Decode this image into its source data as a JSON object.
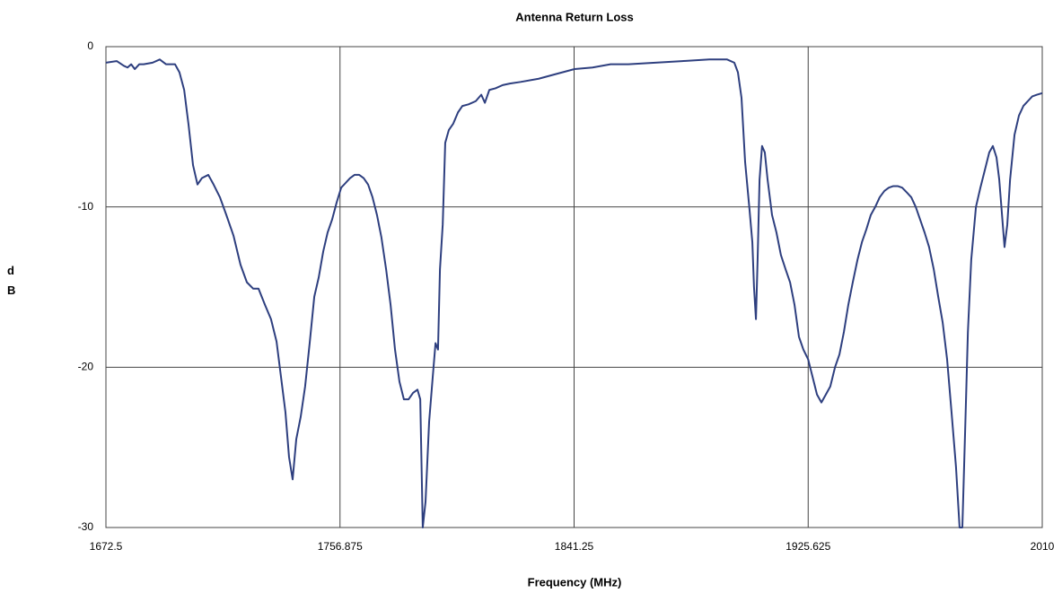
{
  "chart_data": {
    "type": "line",
    "title": "Antenna Return Loss",
    "x_label": "Frequency (MHz)",
    "y_label": "dB",
    "color": "#2e3f7f",
    "grid": true,
    "xlim": [
      1672.5,
      2010
    ],
    "xticks": [
      1672.5,
      1756.875,
      1841.25,
      1925.625,
      2010
    ],
    "ylim": [
      -30,
      0
    ],
    "yticks": [
      0,
      -10,
      -20,
      -30
    ],
    "x": [
      1672.5,
      1676.4,
      1679.0,
      1680.3,
      1681.6,
      1682.9,
      1684.5,
      1686.1,
      1689.3,
      1691.9,
      1694.2,
      1697.4,
      1699.0,
      1700.7,
      1702.3,
      1703.9,
      1705.5,
      1707.1,
      1709.4,
      1711.3,
      1713.6,
      1715.9,
      1718.5,
      1721.0,
      1723.3,
      1725.6,
      1727.5,
      1729.8,
      1732.0,
      1734.0,
      1735.6,
      1737.2,
      1738.5,
      1739.8,
      1741.1,
      1742.7,
      1744.3,
      1746.0,
      1747.6,
      1749.2,
      1750.8,
      1752.4,
      1754.0,
      1755.7,
      1757.3,
      1758.9,
      1760.5,
      1762.1,
      1763.8,
      1765.4,
      1767.0,
      1768.6,
      1770.2,
      1771.8,
      1773.5,
      1775.1,
      1776.7,
      1778.3,
      1779.9,
      1781.6,
      1783.2,
      1784.8,
      1785.8,
      1786.7,
      1787.7,
      1789.0,
      1790.3,
      1791.3,
      1792.2,
      1792.9,
      1793.9,
      1794.8,
      1796.1,
      1797.7,
      1799.4,
      1801.0,
      1803.2,
      1805.8,
      1807.8,
      1809.1,
      1810.7,
      1812.9,
      1815.5,
      1818.1,
      1822.0,
      1828.5,
      1834.9,
      1841.4,
      1847.9,
      1854.4,
      1860.8,
      1870.5,
      1880.2,
      1890.0,
      1896.4,
      1899.0,
      1900.3,
      1901.6,
      1902.9,
      1904.5,
      1905.5,
      1906.1,
      1906.8,
      1907.4,
      1908.1,
      1909.0,
      1910.0,
      1911.0,
      1912.6,
      1914.2,
      1915.8,
      1917.5,
      1919.1,
      1920.7,
      1922.3,
      1923.9,
      1925.6,
      1927.2,
      1928.8,
      1930.4,
      1932.0,
      1933.6,
      1935.3,
      1936.9,
      1938.5,
      1940.1,
      1941.7,
      1943.4,
      1945.0,
      1946.6,
      1948.2,
      1949.8,
      1951.4,
      1953.1,
      1954.7,
      1956.3,
      1957.9,
      1959.5,
      1961.2,
      1962.8,
      1964.4,
      1966.0,
      1967.6,
      1969.2,
      1970.9,
      1972.5,
      1974.1,
      1975.7,
      1977.3,
      1978.9,
      1980.2,
      1981.2,
      1982.2,
      1983.2,
      1984.4,
      1986.1,
      1987.7,
      1989.3,
      1990.9,
      1992.2,
      1993.5,
      1994.5,
      1995.5,
      1996.4,
      1997.4,
      1998.4,
      2000.0,
      2001.6,
      2003.2,
      2004.8,
      2006.4,
      2008.1,
      2010.0
    ],
    "values": [
      -1.0,
      -0.9,
      -1.2,
      -1.3,
      -1.1,
      -1.4,
      -1.1,
      -1.1,
      -1.0,
      -0.8,
      -1.1,
      -1.1,
      -1.6,
      -2.7,
      -4.9,
      -7.4,
      -8.6,
      -8.2,
      -8.0,
      -8.6,
      -9.4,
      -10.5,
      -11.8,
      -13.6,
      -14.7,
      -15.1,
      -15.1,
      -16.1,
      -17.0,
      -18.4,
      -20.6,
      -22.8,
      -25.6,
      -27.0,
      -24.5,
      -23.1,
      -21.2,
      -18.4,
      -15.6,
      -14.4,
      -12.8,
      -11.6,
      -10.8,
      -9.7,
      -8.8,
      -8.5,
      -8.2,
      -8.0,
      -8.0,
      -8.2,
      -8.6,
      -9.4,
      -10.5,
      -11.9,
      -13.9,
      -16.1,
      -18.9,
      -20.9,
      -22.0,
      -22.0,
      -21.6,
      -21.4,
      -22.0,
      -30.0,
      -28.4,
      -23.4,
      -20.6,
      -18.5,
      -18.9,
      -13.9,
      -11.1,
      -6.0,
      -5.2,
      -4.8,
      -4.1,
      -3.7,
      -3.6,
      -3.4,
      -3.0,
      -3.5,
      -2.7,
      -2.6,
      -2.4,
      -2.3,
      -2.2,
      -2.0,
      -1.7,
      -1.4,
      -1.3,
      -1.1,
      -1.1,
      -1.0,
      -0.9,
      -0.8,
      -0.8,
      -1.0,
      -1.6,
      -3.2,
      -7.2,
      -10.2,
      -12.2,
      -15.0,
      -17.0,
      -13.3,
      -8.3,
      -6.2,
      -6.6,
      -8.3,
      -10.5,
      -11.6,
      -13.0,
      -13.9,
      -14.7,
      -16.1,
      -18.1,
      -18.9,
      -19.5,
      -20.6,
      -21.7,
      -22.2,
      -21.7,
      -21.2,
      -20.0,
      -19.2,
      -17.8,
      -16.1,
      -14.7,
      -13.3,
      -12.2,
      -11.4,
      -10.5,
      -10.0,
      -9.4,
      -9.0,
      -8.8,
      -8.7,
      -8.7,
      -8.8,
      -9.1,
      -9.4,
      -10.0,
      -10.8,
      -11.6,
      -12.5,
      -13.9,
      -15.6,
      -17.2,
      -19.5,
      -22.8,
      -26.2,
      -30.0,
      -30.0,
      -24.0,
      -17.8,
      -13.3,
      -10.0,
      -8.8,
      -7.7,
      -6.6,
      -6.2,
      -6.9,
      -8.3,
      -10.5,
      -12.5,
      -11.1,
      -8.3,
      -5.5,
      -4.3,
      -3.7,
      -3.4,
      -3.1,
      -3.0,
      -2.9
    ]
  }
}
